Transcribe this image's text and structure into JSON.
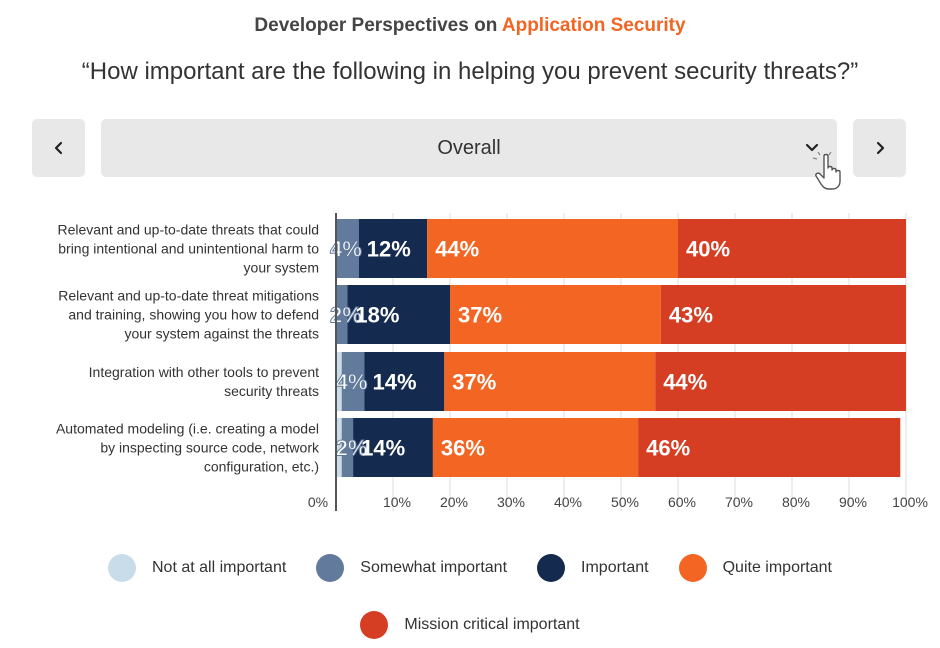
{
  "header": {
    "title_prefix": "Developer Perspectives on",
    "title_accent": "Application Security",
    "question": "“How important are the following in helping you prevent security threats?”"
  },
  "filter": {
    "selected": "Overall"
  },
  "colors": {
    "accent": "#f26522",
    "not_at_all": "#c9dcea",
    "somewhat": "#627b9c",
    "important": "#152a4f",
    "quite": "#f26522",
    "mission": "#d63e24"
  },
  "chart_data": {
    "type": "bar",
    "orientation": "horizontal",
    "stacked": true,
    "categories": [
      [
        "Relevant and up-to-date threats that could",
        "bring intentional and unintentional harm to",
        "your system"
      ],
      [
        "Relevant and up-to-date threat mitigations",
        "and training, showing you how to defend",
        "your system against the threats"
      ],
      [
        "Integration with other tools to prevent",
        "security threats"
      ],
      [
        "Automated modeling (i.e. creating a model",
        "by inspecting source code, network",
        "configuration, etc.)"
      ]
    ],
    "series": [
      {
        "name": "Not at all important",
        "color": "#c9dcea",
        "values": [
          0,
          0,
          1,
          1
        ],
        "labels": [
          "",
          "",
          "",
          ""
        ]
      },
      {
        "name": "Somewhat important",
        "color": "#627b9c",
        "values": [
          4,
          2,
          4,
          2
        ],
        "labels": [
          "4%",
          "2%",
          "4%",
          "2%"
        ]
      },
      {
        "name": "Important",
        "color": "#152a4f",
        "values": [
          12,
          18,
          14,
          14
        ],
        "labels": [
          "12%",
          "18%",
          "14%",
          "14%"
        ]
      },
      {
        "name": "Quite important",
        "color": "#f26522",
        "values": [
          44,
          37,
          37,
          36
        ],
        "labels": [
          "44%",
          "37%",
          "37%",
          "36%"
        ]
      },
      {
        "name": "Mission critical important",
        "color": "#d63e24",
        "values": [
          40,
          43,
          44,
          46
        ],
        "labels": [
          "40%",
          "43%",
          "44%",
          "46%"
        ]
      }
    ],
    "xlim": [
      0,
      100
    ],
    "xticks": [
      "0%",
      "10%",
      "20%",
      "30%",
      "40%",
      "50%",
      "60%",
      "70%",
      "80%",
      "90%",
      "100%"
    ],
    "grid": true,
    "legend_position": "bottom"
  }
}
